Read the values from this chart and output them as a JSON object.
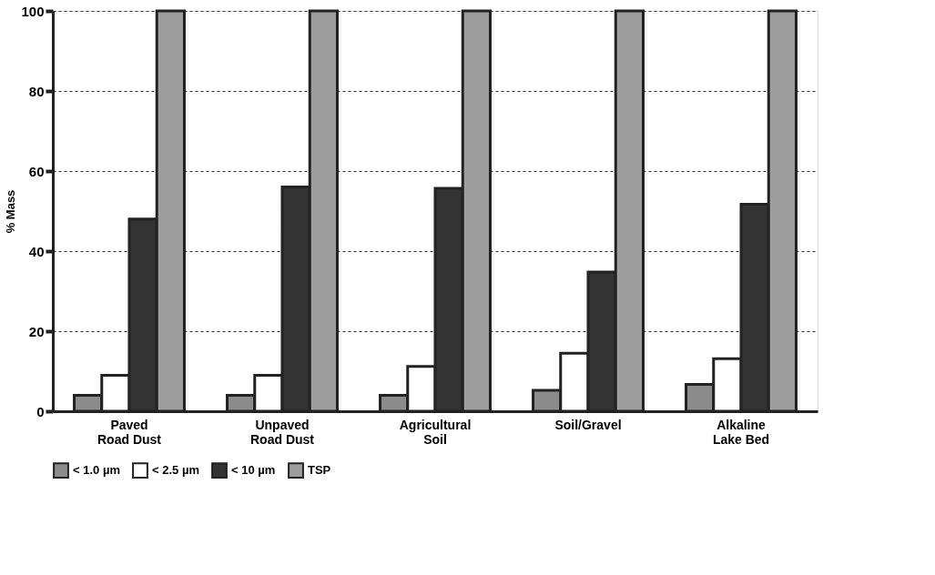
{
  "chart_data": {
    "type": "bar",
    "ylabel": "% Mass",
    "categories": [
      "Paved\nRoad Dust",
      "Unpaved\nRoad Dust",
      "Agricultural\nSoil",
      "Soil/Gravel",
      "Alkaline\nLake Bed"
    ],
    "series": [
      {
        "name": "< 1.0 µm",
        "color": "#8c8c8c",
        "values": [
          4,
          4,
          4,
          5.2,
          6.7
        ]
      },
      {
        "name": "< 2.5 µm",
        "color": "#ffffff",
        "values": [
          9,
          9,
          11.2,
          14.5,
          13.1
        ]
      },
      {
        "name": "< 10 µm",
        "color": "#333333",
        "values": [
          48,
          56,
          55.7,
          34.8,
          51.7
        ]
      },
      {
        "name": "TSP",
        "color": "#9e9e9e",
        "values": [
          100,
          100,
          100,
          100,
          100
        ]
      }
    ],
    "ylim": [
      0,
      100
    ],
    "yticks": [
      0,
      20,
      40,
      60,
      80,
      100
    ],
    "grid": "y",
    "legend": "bottom"
  }
}
